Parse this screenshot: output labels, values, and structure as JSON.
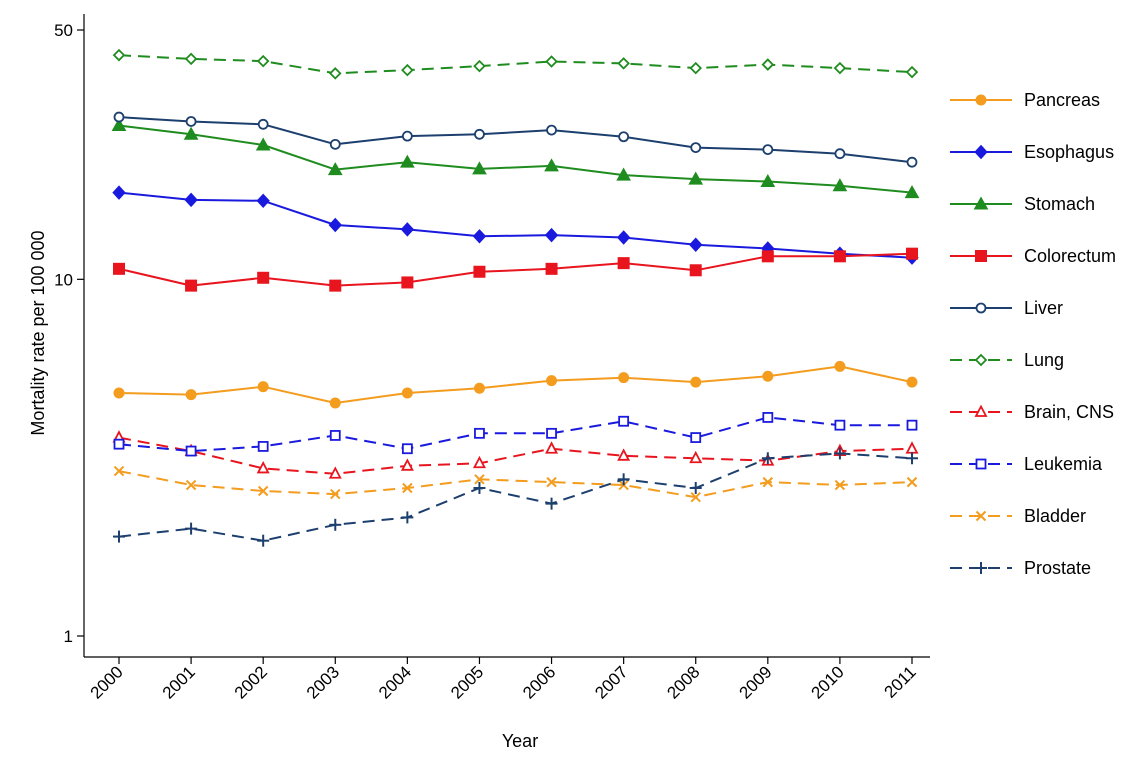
{
  "chart_data": {
    "type": "line",
    "title": "",
    "xlabel": "Year",
    "ylabel": "Mortality rate per 100 000",
    "yscale": "log",
    "ylim": [
      1,
      50
    ],
    "yticks": [
      1,
      10,
      50
    ],
    "ytick_labels": [
      "1",
      "10",
      "50"
    ],
    "x": [
      "2000",
      "2001",
      "2002",
      "2003",
      "2004",
      "2005",
      "2006",
      "2007",
      "2008",
      "2009",
      "2010",
      "2011"
    ],
    "grid": false,
    "legend_position": "right",
    "series": [
      {
        "name": "Pancreas",
        "color": "#f39c1e",
        "dash": "solid",
        "marker": "filled-circle",
        "values": [
          4.8,
          4.75,
          5.0,
          4.5,
          4.8,
          4.95,
          5.2,
          5.3,
          5.15,
          5.35,
          5.7,
          5.15
        ]
      },
      {
        "name": "Esophagus",
        "color": "#1a1adf",
        "dash": "solid",
        "marker": "filled-diamond",
        "values": [
          17.5,
          16.7,
          16.6,
          14.2,
          13.8,
          13.2,
          13.3,
          13.1,
          12.5,
          12.2,
          11.8,
          11.5
        ]
      },
      {
        "name": "Stomach",
        "color": "#1f8c1f",
        "dash": "solid",
        "marker": "filled-triangle",
        "values": [
          27.0,
          25.5,
          23.8,
          20.3,
          21.3,
          20.4,
          20.8,
          19.6,
          19.1,
          18.8,
          18.3,
          17.5
        ]
      },
      {
        "name": "Colorectum",
        "color": "#e8141e",
        "dash": "solid",
        "marker": "filled-square",
        "values": [
          10.7,
          9.6,
          10.1,
          9.6,
          9.8,
          10.5,
          10.7,
          11.1,
          10.6,
          11.6,
          11.6,
          11.8
        ]
      },
      {
        "name": "Liver",
        "color": "#1c3f6e",
        "dash": "solid",
        "marker": "hollow-circle",
        "values": [
          28.5,
          27.7,
          27.2,
          23.9,
          25.2,
          25.5,
          26.2,
          25.1,
          23.4,
          23.1,
          22.5,
          21.3
        ]
      },
      {
        "name": "Lung",
        "color": "#1f8c1f",
        "dash": "dash",
        "marker": "hollow-diamond",
        "values": [
          42.5,
          41.5,
          40.9,
          37.8,
          38.6,
          39.6,
          40.8,
          40.3,
          39.1,
          40.0,
          39.1,
          38.1
        ]
      },
      {
        "name": "Brain, CNS",
        "color": "#e8141e",
        "dash": "dash",
        "marker": "hollow-triangle",
        "values": [
          3.6,
          3.3,
          2.95,
          2.85,
          3.0,
          3.05,
          3.35,
          3.2,
          3.15,
          3.1,
          3.3,
          3.35
        ]
      },
      {
        "name": "Leukemia",
        "color": "#1a1adf",
        "dash": "dash",
        "marker": "hollow-square",
        "values": [
          3.45,
          3.3,
          3.4,
          3.65,
          3.35,
          3.7,
          3.7,
          4.0,
          3.6,
          4.1,
          3.9,
          3.9
        ]
      },
      {
        "name": "Bladder",
        "color": "#f39c1e",
        "dash": "dash",
        "marker": "x",
        "values": [
          2.9,
          2.65,
          2.55,
          2.5,
          2.6,
          2.75,
          2.7,
          2.65,
          2.45,
          2.7,
          2.65,
          2.7
        ]
      },
      {
        "name": "Prostate",
        "color": "#1c3f6e",
        "dash": "dash",
        "marker": "plus",
        "values": [
          1.9,
          2.0,
          1.85,
          2.05,
          2.15,
          2.6,
          2.35,
          2.75,
          2.6,
          3.15,
          3.25,
          3.15
        ]
      }
    ]
  }
}
